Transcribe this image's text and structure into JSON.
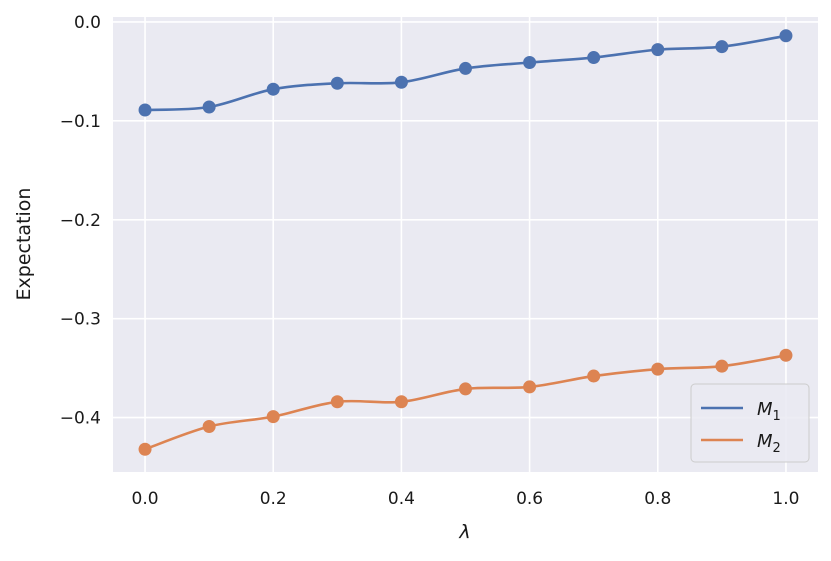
{
  "chart_data": {
    "type": "line",
    "xlabel": "λ",
    "ylabel": "Expectation",
    "xlim": [
      -0.05,
      1.05
    ],
    "ylim": [
      -0.455,
      0.005
    ],
    "x_ticks": [
      0.0,
      0.2,
      0.4,
      0.6,
      0.8,
      1.0
    ],
    "x_tick_labels": [
      "0.0",
      "0.2",
      "0.4",
      "0.6",
      "0.8",
      "1.0"
    ],
    "y_ticks": [
      0.0,
      -0.1,
      -0.2,
      -0.3,
      -0.4
    ],
    "y_tick_labels": [
      "0.0",
      "−0.1",
      "−0.2",
      "−0.3",
      "−0.4"
    ],
    "grid": true,
    "legend_position": "bottom-right",
    "x": [
      0.0,
      0.1,
      0.2,
      0.3,
      0.4,
      0.5,
      0.6,
      0.7,
      0.8,
      0.9,
      1.0
    ],
    "series": [
      {
        "name": "M",
        "subscript": "1",
        "color": "#4c72b0",
        "values": [
          -0.089,
          -0.086,
          -0.068,
          -0.062,
          -0.061,
          -0.047,
          -0.041,
          -0.036,
          -0.028,
          -0.025,
          -0.014
        ]
      },
      {
        "name": "M",
        "subscript": "2",
        "color": "#dd8452",
        "values": [
          -0.432,
          -0.409,
          -0.399,
          -0.384,
          -0.384,
          -0.371,
          -0.369,
          -0.358,
          -0.351,
          -0.348,
          -0.337
        ]
      }
    ],
    "background_color": "#eaeaf2",
    "grid_color": "#ffffff"
  }
}
